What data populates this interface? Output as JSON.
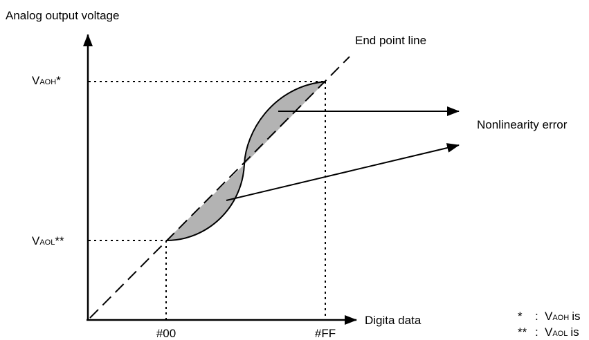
{
  "diagram": {
    "y_axis_label": "Analog output voltage",
    "x_axis_label": "Digita data",
    "end_point_line_label": "End point line",
    "nonlinearity_label": "Nonlinearity error",
    "vaoh": {
      "base": "V",
      "sub": "AOH",
      "suffix": "*"
    },
    "vaol": {
      "base": "V",
      "sub": "AOL",
      "suffix": "**"
    },
    "x_tick_00": "#00",
    "x_tick_ff": "#FF",
    "footnote_1": {
      "mark": "*",
      "colon": ":",
      "base": "V",
      "sub": "AOH",
      "tail": "is"
    },
    "footnote_2": {
      "mark": "**",
      "colon": ":",
      "base": "V",
      "sub": "AOL",
      "tail": "is"
    }
  },
  "colors": {
    "line": "#000000",
    "error_fill": "#b3b3b3",
    "background": "#ffffff"
  }
}
